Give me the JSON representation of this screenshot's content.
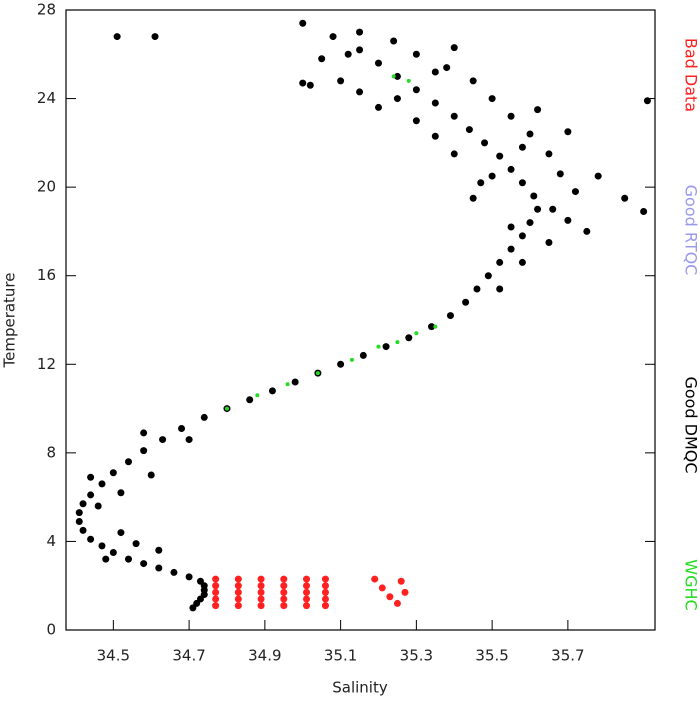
{
  "chart_data": {
    "type": "scatter",
    "xlabel": "Salinity",
    "ylabel": "Temperature",
    "xlim": [
      34.375,
      35.93
    ],
    "xticks": [
      34.5,
      34.7,
      34.9,
      35.1,
      35.3,
      35.5,
      35.7
    ],
    "ylim": [
      0,
      28
    ],
    "yticks": [
      0,
      4,
      8,
      12,
      16,
      20,
      24,
      28
    ],
    "series": [
      {
        "name": "Bad Data",
        "color": "#ff2020",
        "x": [
          34.77,
          34.83,
          34.89,
          34.95,
          35.01,
          35.06,
          34.77,
          34.83,
          34.89,
          34.95,
          35.01,
          35.06,
          34.77,
          34.83,
          34.89,
          34.95,
          35.01,
          35.06,
          34.77,
          34.83,
          34.89,
          34.95,
          35.01,
          35.06,
          34.77,
          34.83,
          34.89,
          34.95,
          35.01,
          35.06,
          35.19,
          35.21,
          35.23,
          35.25,
          35.26,
          35.27
        ],
        "values": [
          1.1,
          1.1,
          1.1,
          1.1,
          1.1,
          1.1,
          1.4,
          1.4,
          1.4,
          1.4,
          1.4,
          1.4,
          1.7,
          1.7,
          1.7,
          1.7,
          1.7,
          1.7,
          2.0,
          2.0,
          2.0,
          2.0,
          2.0,
          2.0,
          2.3,
          2.3,
          2.3,
          2.3,
          2.3,
          2.3,
          2.3,
          1.9,
          1.5,
          1.2,
          2.2,
          1.7
        ]
      },
      {
        "name": "Good RTQC",
        "color": "#9999ee",
        "x": [],
        "values": []
      },
      {
        "name": "Good DMQC",
        "color": "#000000",
        "x": [
          34.71,
          34.72,
          34.73,
          34.74,
          34.74,
          34.74,
          34.73,
          34.7,
          34.66,
          34.62,
          34.58,
          34.54,
          34.5,
          34.47,
          34.44,
          34.42,
          34.41,
          34.41,
          34.42,
          34.44,
          34.47,
          34.5,
          34.54,
          34.58,
          34.63,
          34.68,
          34.74,
          34.8,
          34.86,
          34.92,
          34.98,
          35.04,
          35.1,
          35.16,
          35.22,
          35.28,
          35.34,
          35.39,
          35.43,
          35.46,
          35.49,
          35.52,
          35.55,
          35.58,
          35.6,
          35.62,
          35.61,
          35.58,
          35.55,
          35.52,
          35.48,
          35.44,
          35.4,
          35.35,
          35.3,
          35.25,
          35.2,
          35.15,
          35.08,
          35.0,
          34.48,
          34.56,
          34.46,
          34.52,
          34.44,
          34.6,
          34.7,
          34.58,
          34.52,
          34.62,
          35.52,
          35.58,
          35.65,
          35.7,
          35.72,
          35.68,
          35.65,
          35.6,
          35.55,
          35.5,
          35.45,
          35.38,
          35.3,
          35.24,
          35.45,
          35.5,
          35.4,
          35.35,
          35.3,
          35.2,
          35.15,
          35.1,
          35.05,
          35.15,
          35.55,
          35.66,
          35.75,
          35.78,
          35.85,
          35.7,
          35.62,
          35.4,
          35.47,
          35.35,
          35.25,
          35.12,
          35.58,
          34.51,
          34.61,
          35.91,
          35.9,
          35.02,
          35.0
        ],
        "values": [
          1.0,
          1.2,
          1.4,
          1.6,
          1.8,
          2.0,
          2.2,
          2.4,
          2.6,
          2.8,
          3.0,
          3.2,
          3.5,
          3.8,
          4.1,
          4.5,
          4.9,
          5.3,
          5.7,
          6.1,
          6.6,
          7.1,
          7.6,
          8.1,
          8.6,
          9.1,
          9.6,
          10.0,
          10.4,
          10.8,
          11.2,
          11.6,
          12.0,
          12.4,
          12.8,
          13.2,
          13.7,
          14.2,
          14.8,
          15.4,
          16.0,
          16.6,
          17.2,
          17.8,
          18.4,
          19.0,
          19.6,
          20.2,
          20.8,
          21.4,
          22.0,
          22.6,
          23.2,
          23.8,
          24.4,
          25.0,
          25.6,
          26.2,
          26.8,
          27.4,
          3.2,
          3.9,
          5.6,
          6.2,
          6.9,
          7.0,
          8.6,
          8.9,
          4.4,
          3.6,
          15.4,
          16.6,
          17.5,
          18.5,
          19.8,
          20.6,
          21.5,
          22.4,
          23.2,
          24.0,
          24.8,
          25.4,
          26.0,
          26.6,
          19.5,
          20.5,
          21.5,
          22.3,
          23.0,
          23.6,
          24.3,
          24.8,
          25.8,
          27.0,
          18.2,
          19.0,
          18.0,
          20.5,
          19.5,
          22.5,
          23.5,
          26.3,
          20.2,
          25.2,
          24.0,
          26.0,
          21.8,
          26.8,
          26.8,
          23.9,
          18.9,
          24.6,
          24.7
        ]
      },
      {
        "name": "WGHC",
        "color": "#22dd22",
        "x": [
          34.8,
          34.88,
          34.96,
          35.04,
          35.13,
          35.2,
          35.25,
          35.3,
          35.35,
          35.24,
          35.28
        ],
        "values": [
          10.0,
          10.6,
          11.1,
          11.6,
          12.2,
          12.8,
          13.0,
          13.4,
          13.7,
          25.0,
          24.8
        ]
      }
    ]
  }
}
